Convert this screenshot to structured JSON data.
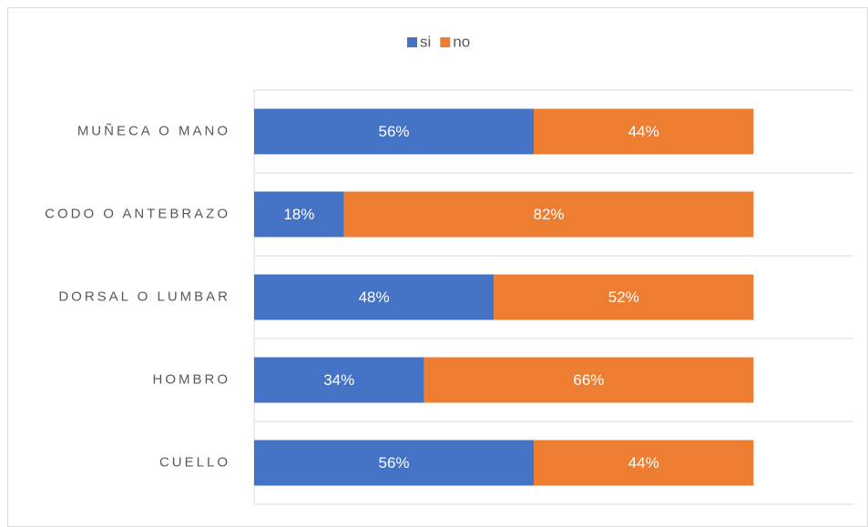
{
  "chart_data": {
    "type": "stacked-bar-horizontal",
    "categories": [
      "MUÑECA O MANO",
      "CODO O ANTEBRAZO",
      "DORSAL O LUMBAR",
      "HOMBRO",
      "CUELLO"
    ],
    "series": [
      {
        "name": "si",
        "color": "#4472c4",
        "values": [
          56,
          18,
          48,
          34,
          56
        ],
        "value_labels": [
          "56%",
          "18%",
          "48%",
          "34%",
          "56%"
        ]
      },
      {
        "name": "no",
        "color": "#ed7d31",
        "values": [
          44,
          82,
          52,
          66,
          44
        ],
        "value_labels": [
          "44%",
          "82%",
          "52%",
          "66%",
          "44%"
        ]
      }
    ],
    "xlim": [
      0,
      120
    ],
    "legend": "top"
  }
}
